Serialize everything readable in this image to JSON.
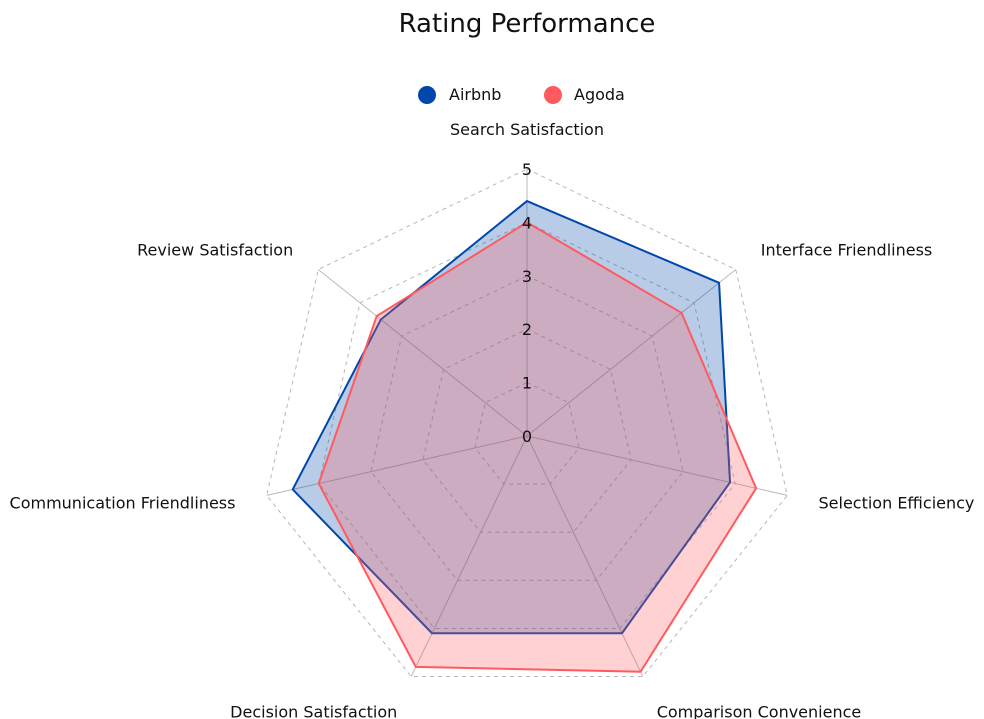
{
  "chart_data": {
    "type": "radar",
    "title": "Rating Performance",
    "axes": [
      "Search Satisfaction",
      "Interface Friendliness",
      "Selection Efficiency",
      "Comparison Convenience",
      "Decision Satisfaction",
      "Communication Friendliness",
      "Review Satisfaction"
    ],
    "series": [
      {
        "name": "Airbnb",
        "color": "#0047AB",
        "fill": "rgba(0, 71, 171, 0.28)",
        "values": [
          4.4,
          4.6,
          3.9,
          4.1,
          4.1,
          4.5,
          3.5
        ]
      },
      {
        "name": "Agoda",
        "color": "#FF5A5F",
        "fill": "rgba(255, 90, 95, 0.28)",
        "values": [
          4.0,
          3.7,
          4.4,
          4.9,
          4.8,
          4.0,
          3.6
        ]
      }
    ],
    "rlim": [
      0,
      5
    ],
    "ticks": [
      "0",
      "1",
      "2",
      "3",
      "4",
      "5"
    ],
    "grid": true,
    "legend": "top-center"
  }
}
